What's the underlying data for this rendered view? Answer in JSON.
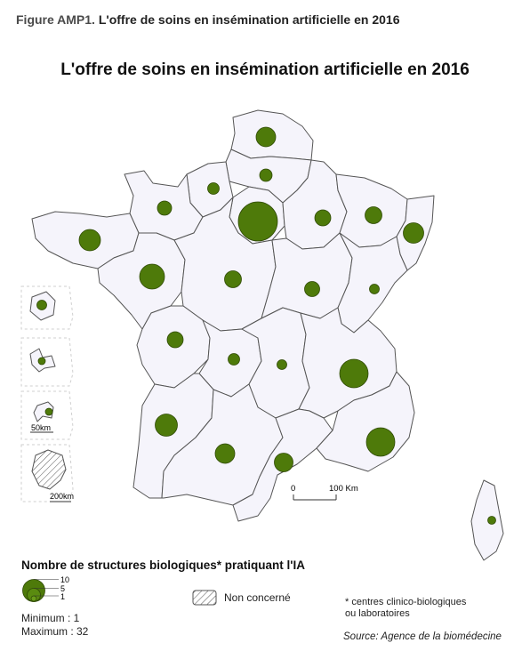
{
  "caption": {
    "figure_number": "Figure AMP1.",
    "text": "L'offre de soins en insémination artificielle en 2016"
  },
  "map_title": "L'offre de soins en insémination artificielle en 2016",
  "colors": {
    "region_fill": "#f5f4fb",
    "region_stroke": "#555555",
    "circle_fill": "#4e7a0a",
    "circle_stroke": "#2f4a05"
  },
  "scale_bar": {
    "start_label": "0",
    "end_label": "100 Km"
  },
  "insets": {
    "guadeloupe_scale": "50km",
    "guyane_scale": "200km"
  },
  "legend": {
    "title": "Nombre de structures biologiques* pratiquant l'IA",
    "size_values": [
      "10",
      "5",
      "1"
    ],
    "not_concerned_label": "Non concerné",
    "minimum": "Minimum : 1",
    "maximum": "Maximum : 32"
  },
  "note": {
    "line1": "* centres clinico-biologiques",
    "line2": "ou laboratoires"
  },
  "source": "Source: Agence de la biomédecine"
}
